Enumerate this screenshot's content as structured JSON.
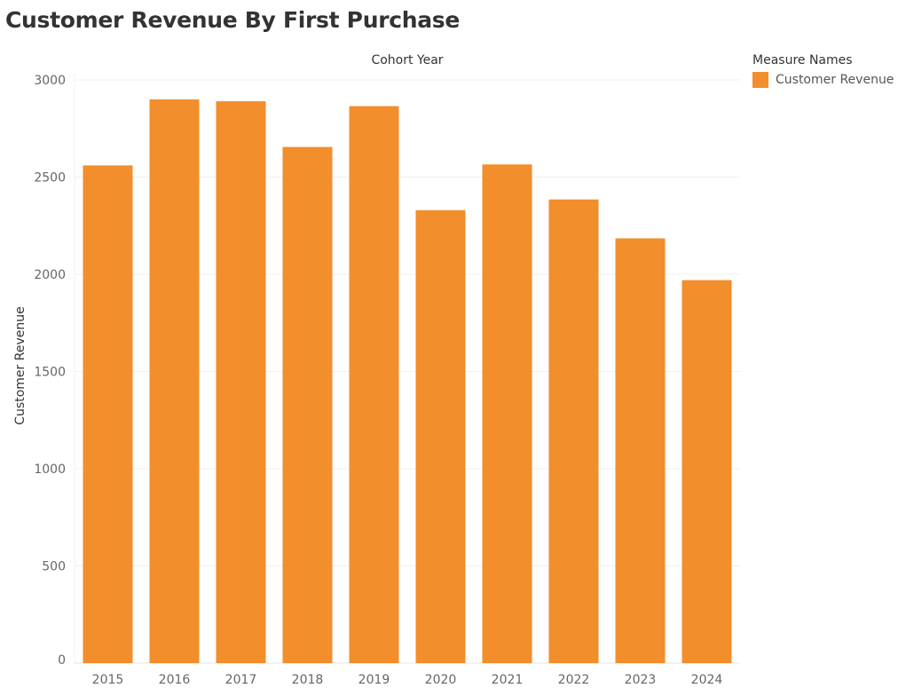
{
  "page": {
    "title": "Customer Revenue By First Purchase"
  },
  "legend": {
    "title": "Measure Names",
    "items": [
      {
        "label": "Customer Revenue",
        "color": "#F28E2B"
      }
    ]
  },
  "chart_data": {
    "type": "bar",
    "title": "Customer Revenue By First Purchase",
    "xlabel": "Cohort Year",
    "ylabel": "Customer Revenue",
    "categories": [
      "2015",
      "2016",
      "2017",
      "2018",
      "2019",
      "2020",
      "2021",
      "2022",
      "2023",
      "2024"
    ],
    "series": [
      {
        "name": "Customer Revenue",
        "color": "#F28E2B",
        "values": [
          2560,
          2900,
          2890,
          2655,
          2865,
          2330,
          2565,
          2385,
          2185,
          1970
        ]
      }
    ],
    "yticks": [
      0,
      500,
      1000,
      1500,
      2000,
      2500,
      3000
    ],
    "ylim": [
      0,
      3000
    ],
    "grid": true,
    "legend_position": "top-right"
  }
}
